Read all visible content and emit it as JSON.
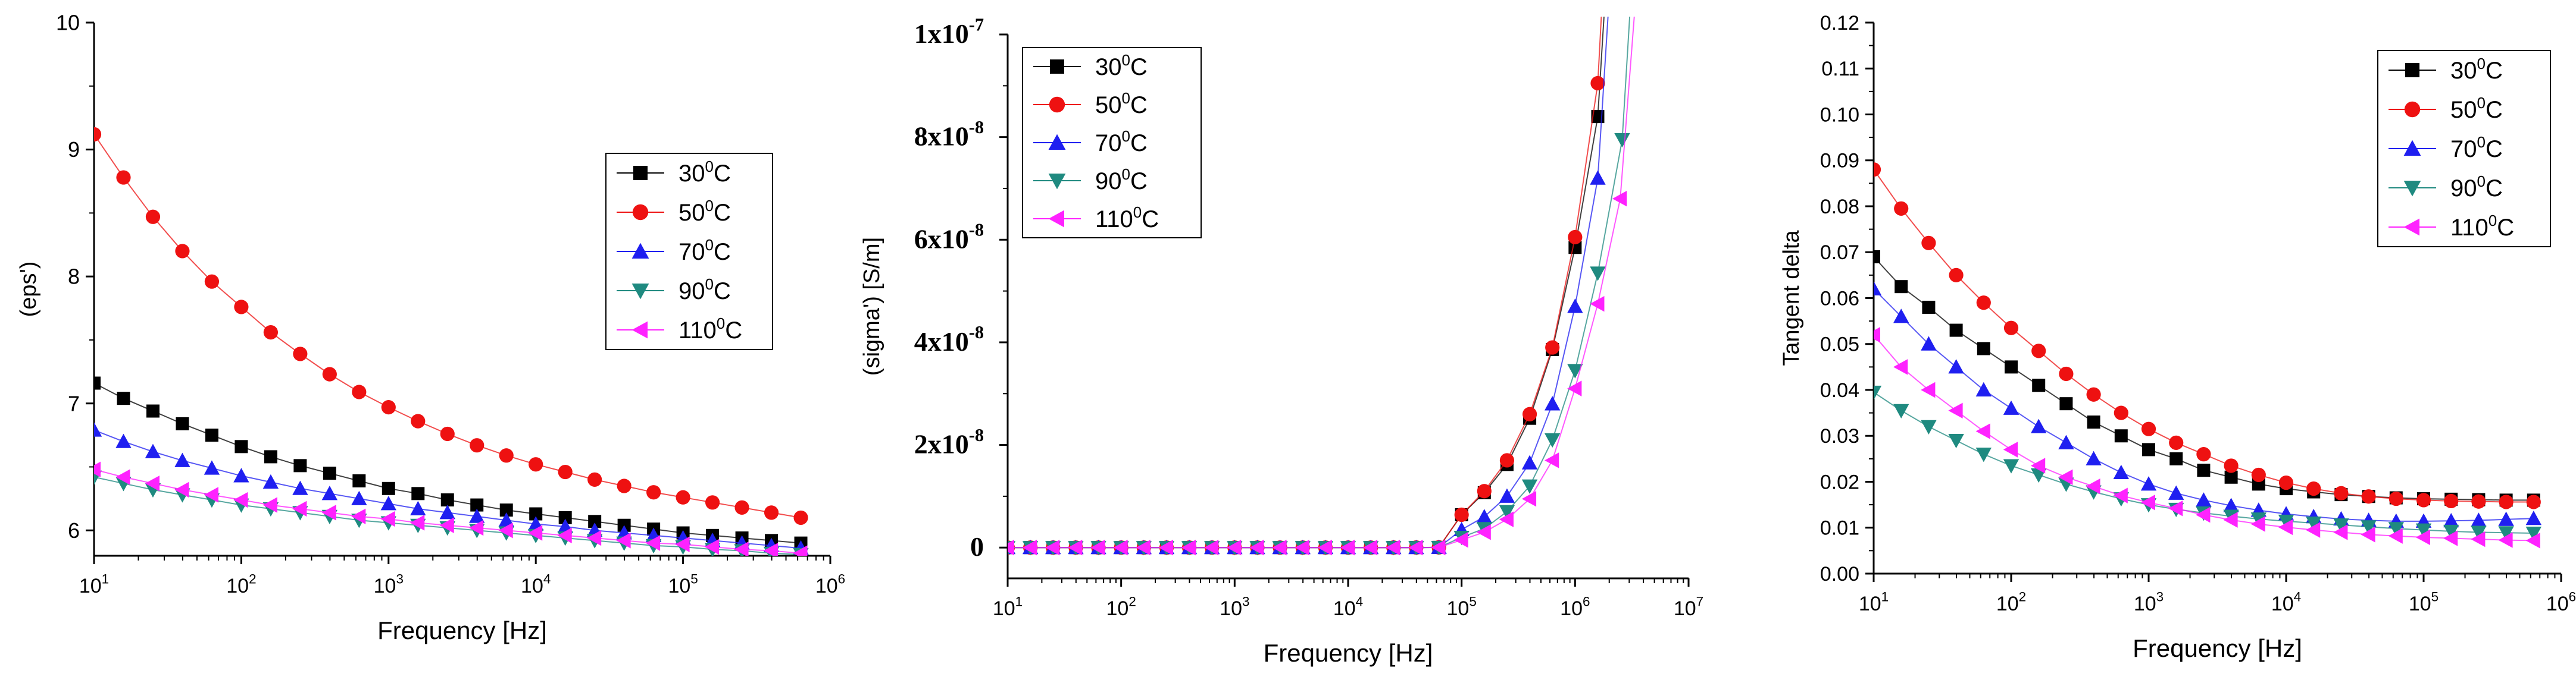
{
  "figure_note": "",
  "chart_data": [
    {
      "type": "line",
      "title": "",
      "xlabel": "Frequency [Hz]",
      "ylabel": "(eps')",
      "xscale": "log",
      "xlim": [
        10,
        1000000
      ],
      "ylim": [
        5.8,
        10
      ],
      "grid": false,
      "legend_position": "top-right",
      "x_tick_labels": [
        {
          "base": "10",
          "exp": "1"
        },
        {
          "base": "10",
          "exp": "2"
        },
        {
          "base": "10",
          "exp": "3"
        },
        {
          "base": "10",
          "exp": "4"
        },
        {
          "base": "10",
          "exp": "5"
        },
        {
          "base": "10",
          "exp": "6"
        }
      ],
      "y_tick_labels": [
        "6",
        "7",
        "8",
        "9",
        "10"
      ],
      "x": [
        10,
        15.85,
        25.12,
        39.81,
        63.1,
        100,
        158.5,
        251.2,
        398.1,
        631,
        1000,
        1585,
        2512,
        3981,
        6310,
        10000,
        15850,
        25120,
        39810,
        63100,
        100000,
        158500,
        251200,
        398100,
        631000
      ],
      "series": [
        {
          "name": "30°C",
          "temp": "30",
          "color": "#000000",
          "marker": "square",
          "values": [
            7.16,
            7.04,
            6.94,
            6.84,
            6.75,
            6.66,
            6.58,
            6.51,
            6.45,
            6.39,
            6.33,
            6.29,
            6.24,
            6.2,
            6.16,
            6.13,
            6.1,
            6.07,
            6.04,
            6.01,
            5.98,
            5.96,
            5.94,
            5.92,
            5.9
          ]
        },
        {
          "name": "50°C",
          "temp": "50",
          "color": "#ee1111",
          "marker": "circle",
          "values": [
            9.12,
            8.78,
            8.47,
            8.2,
            7.96,
            7.76,
            7.56,
            7.39,
            7.23,
            7.09,
            6.97,
            6.86,
            6.76,
            6.67,
            6.59,
            6.52,
            6.46,
            6.4,
            6.35,
            6.3,
            6.26,
            6.22,
            6.18,
            6.14,
            6.1
          ]
        },
        {
          "name": "70°C",
          "temp": "70",
          "color": "#1f1ff0",
          "marker": "triangle-up",
          "values": [
            6.79,
            6.7,
            6.62,
            6.55,
            6.49,
            6.43,
            6.38,
            6.33,
            6.29,
            6.25,
            6.21,
            6.17,
            6.14,
            6.11,
            6.08,
            6.05,
            6.03,
            6.0,
            5.98,
            5.96,
            5.94,
            5.92,
            5.9,
            5.88,
            5.86
          ]
        },
        {
          "name": "90°C",
          "temp": "90",
          "color": "#1f8a80",
          "marker": "triangle-down",
          "values": [
            6.42,
            6.37,
            6.32,
            6.28,
            6.24,
            6.2,
            6.17,
            6.14,
            6.11,
            6.08,
            6.06,
            6.04,
            6.02,
            6.0,
            5.98,
            5.96,
            5.94,
            5.92,
            5.9,
            5.88,
            5.87,
            5.85,
            5.84,
            5.82,
            5.81
          ]
        },
        {
          "name": "110°C",
          "temp": "110",
          "color": "#ff22ff",
          "marker": "triangle-left",
          "values": [
            6.48,
            6.42,
            6.37,
            6.32,
            6.28,
            6.24,
            6.2,
            6.17,
            6.14,
            6.11,
            6.09,
            6.06,
            6.04,
            6.02,
            6.0,
            5.98,
            5.96,
            5.94,
            5.92,
            5.9,
            5.89,
            5.87,
            5.85,
            5.84,
            5.82
          ]
        }
      ]
    },
    {
      "type": "line",
      "title": "",
      "xlabel": "Frequency [Hz]",
      "ylabel": "(sigma') [S/m]",
      "xscale": "log",
      "xlim": [
        10,
        10000000
      ],
      "ylim": [
        -6e-09,
        1e-07
      ],
      "grid": false,
      "legend_position": "top-left",
      "x_tick_labels": [
        {
          "base": "10",
          "exp": "1"
        },
        {
          "base": "10",
          "exp": "2"
        },
        {
          "base": "10",
          "exp": "3"
        },
        {
          "base": "10",
          "exp": "4"
        },
        {
          "base": "10",
          "exp": "5"
        },
        {
          "base": "10",
          "exp": "6"
        },
        {
          "base": "10",
          "exp": "7"
        }
      ],
      "y_ticks": [
        {
          "value": 0,
          "base": "0",
          "exp": ""
        },
        {
          "value": 2e-08,
          "base": "2x10",
          "exp": "-8"
        },
        {
          "value": 4e-08,
          "base": "4x10",
          "exp": "-8"
        },
        {
          "value": 6e-08,
          "base": "6x10",
          "exp": "-8"
        },
        {
          "value": 8e-08,
          "base": "8x10",
          "exp": "-8"
        },
        {
          "value": 1e-07,
          "base": "1x10",
          "exp": "-7"
        }
      ],
      "x": [
        10,
        15.85,
        25.12,
        39.81,
        63.1,
        100,
        158.5,
        251.2,
        398.1,
        631,
        1000,
        1585,
        2512,
        3981,
        6310,
        10000,
        15850,
        25120,
        39810,
        63100,
        100000,
        158500,
        251200,
        398100,
        631000,
        1000000,
        1585000
      ],
      "series": [
        {
          "name": "30°C",
          "temp": "30",
          "color": "#000000",
          "marker": "square",
          "values": [
            0,
            0,
            0,
            0,
            0,
            0,
            0,
            0,
            0,
            0,
            0,
            0,
            0,
            0,
            0,
            1e-12,
            2e-12,
            6e-12,
            1.6e-11,
            3.9e-11,
            6.4e-09,
            1.07e-08,
            1.62e-08,
            2.52e-08,
            3.86e-08,
            5.85e-08,
            8.4e-08
          ]
        },
        {
          "name": "50°C",
          "temp": "50",
          "color": "#ee1111",
          "marker": "circle",
          "values": [
            0,
            0,
            0,
            0,
            0,
            0,
            0,
            0,
            0,
            0,
            0,
            0,
            0,
            0,
            0,
            1e-12,
            2e-12,
            6e-12,
            1.6e-11,
            3.9e-11,
            6.4e-09,
            1.1e-08,
            1.7e-08,
            2.6e-08,
            3.9e-08,
            6.05e-08,
            9.05e-08
          ]
        },
        {
          "name": "70°C",
          "temp": "70",
          "color": "#1f1ff0",
          "marker": "triangle-up",
          "values": [
            0,
            0,
            0,
            0,
            0,
            0,
            0,
            0,
            0,
            0,
            0,
            0,
            0,
            0,
            0,
            0,
            0,
            0,
            0,
            3.5e-11,
            3.5e-09,
            6e-09,
            1e-08,
            1.65e-08,
            2.8e-08,
            4.7e-08,
            7.2e-08
          ]
        },
        {
          "name": "90°C",
          "temp": "90",
          "color": "#1f8a80",
          "marker": "triangle-down",
          "values": [
            0,
            0,
            0,
            0,
            0,
            0,
            0,
            0,
            0,
            0,
            0,
            0,
            0,
            0,
            0,
            0,
            0,
            0,
            0,
            2.5e-11,
            2e-09,
            3.7e-09,
            7e-09,
            1.2e-08,
            2.1e-08,
            3.45e-08,
            5.35e-08
          ]
        },
        {
          "name": "110°C",
          "temp": "110",
          "color": "#ff22ff",
          "marker": "triangle-left",
          "values": [
            0,
            0,
            0,
            0,
            0,
            0,
            0,
            0,
            0,
            0,
            0,
            0,
            0,
            0,
            0,
            0,
            0,
            0,
            0,
            2e-11,
            1.5e-09,
            3e-09,
            5.5e-09,
            9.5e-09,
            1.7e-08,
            3.1e-08,
            4.75e-08
          ]
        }
      ],
      "extra_points": [
        {
          "series": "90°C",
          "x": 2600000,
          "y": 7.95e-08
        },
        {
          "series": "110°C",
          "x": 2500000,
          "y": 6.8e-08
        }
      ]
    },
    {
      "type": "line",
      "title": "",
      "xlabel": "Frequency [Hz]",
      "ylabel": "Tangent delta",
      "xscale": "log",
      "xlim": [
        10,
        1000000
      ],
      "ylim": [
        0,
        0.12
      ],
      "grid": false,
      "legend_position": "top-right",
      "x_tick_labels": [
        {
          "base": "10",
          "exp": "1"
        },
        {
          "base": "10",
          "exp": "2"
        },
        {
          "base": "10",
          "exp": "3"
        },
        {
          "base": "10",
          "exp": "4"
        },
        {
          "base": "10",
          "exp": "5"
        },
        {
          "base": "10",
          "exp": "6"
        }
      ],
      "y_tick_labels": [
        "0.00",
        "0.01",
        "0.02",
        "0.03",
        "0.04",
        "0.05",
        "0.06",
        "0.07",
        "0.08",
        "0.09",
        "0.10",
        "0.11",
        "0.12"
      ],
      "x": [
        10,
        15.85,
        25.12,
        39.81,
        63.1,
        100,
        158.5,
        251.2,
        398.1,
        631,
        1000,
        1585,
        2512,
        3981,
        6310,
        10000,
        15850,
        25120,
        39810,
        63100,
        100000,
        158500,
        251200,
        398100,
        631000
      ],
      "series": [
        {
          "name": "30°C",
          "temp": "30",
          "color": "#000000",
          "marker": "square",
          "values": [
            0.069,
            0.0625,
            0.058,
            0.053,
            0.049,
            0.045,
            0.041,
            0.037,
            0.033,
            0.03,
            0.027,
            0.025,
            0.0225,
            0.021,
            0.0195,
            0.0185,
            0.0178,
            0.0172,
            0.0168,
            0.0165,
            0.0163,
            0.0162,
            0.0161,
            0.016,
            0.016
          ]
        },
        {
          "name": "50°C",
          "temp": "50",
          "color": "#ee1111",
          "marker": "circle",
          "values": [
            0.088,
            0.0795,
            0.072,
            0.065,
            0.059,
            0.0535,
            0.0485,
            0.0435,
            0.039,
            0.035,
            0.0315,
            0.0285,
            0.026,
            0.0235,
            0.0215,
            0.0198,
            0.0185,
            0.0175,
            0.0168,
            0.0163,
            0.016,
            0.0158,
            0.0157,
            0.0156,
            0.0156
          ]
        },
        {
          "name": "70°C",
          "temp": "70",
          "color": "#1f1ff0",
          "marker": "triangle-up",
          "values": [
            0.062,
            0.056,
            0.05,
            0.045,
            0.04,
            0.036,
            0.032,
            0.0285,
            0.025,
            0.022,
            0.0195,
            0.0175,
            0.016,
            0.0148,
            0.0138,
            0.013,
            0.0124,
            0.0119,
            0.0116,
            0.0114,
            0.0114,
            0.0115,
            0.0116,
            0.0118,
            0.012
          ]
        },
        {
          "name": "90°C",
          "temp": "90",
          "color": "#1f8a80",
          "marker": "triangle-down",
          "values": [
            0.0395,
            0.0355,
            0.032,
            0.029,
            0.026,
            0.0235,
            0.0215,
            0.0195,
            0.0178,
            0.0163,
            0.015,
            0.014,
            0.0132,
            0.0125,
            0.0119,
            0.0114,
            0.011,
            0.0106,
            0.0102,
            0.0098,
            0.0095,
            0.0092,
            0.009,
            0.0089,
            0.0088
          ]
        },
        {
          "name": "110°C",
          "temp": "110",
          "color": "#ff22ff",
          "marker": "triangle-left",
          "values": [
            0.052,
            0.045,
            0.04,
            0.0355,
            0.031,
            0.027,
            0.0235,
            0.021,
            0.019,
            0.017,
            0.0155,
            0.0142,
            0.0128,
            0.0117,
            0.0108,
            0.0101,
            0.0095,
            0.009,
            0.0085,
            0.0082,
            0.0079,
            0.0077,
            0.0075,
            0.0073,
            0.0072
          ]
        }
      ]
    }
  ]
}
